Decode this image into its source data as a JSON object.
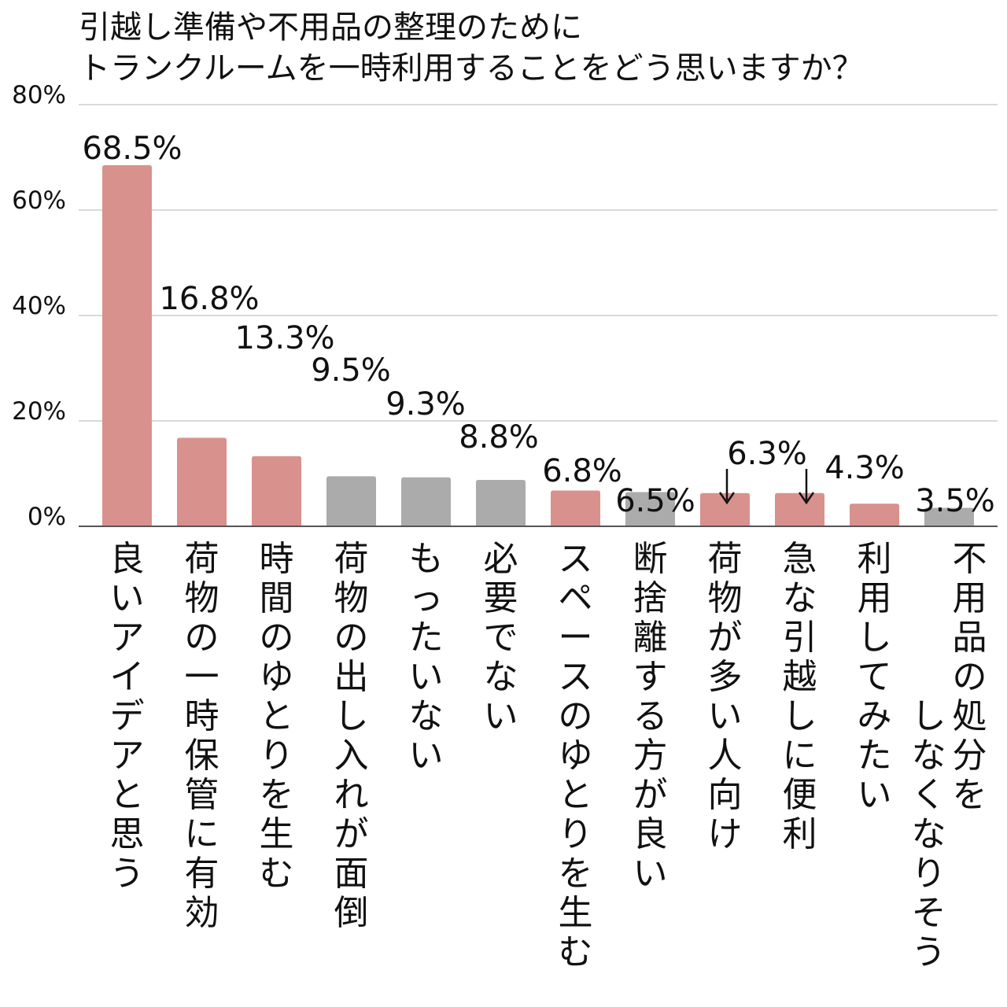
{
  "chart_data": {
    "type": "bar",
    "title": [
      "引越し準備や不用品の整理のために",
      "トランクルームを一時利用することをどう思いますか？"
    ],
    "xlabel": "",
    "ylabel": "",
    "ylim": [
      0,
      80
    ],
    "yticks": [
      "0%",
      "20%",
      "40%",
      "60%",
      "80%"
    ],
    "ytick_values": [
      0,
      20,
      40,
      60,
      80
    ],
    "grid": true,
    "categories": [
      [
        "良いアイデアと思う"
      ],
      [
        "荷物の一時保管に有効"
      ],
      [
        "時間のゆとりを生む"
      ],
      [
        "荷物の出し入れが面倒"
      ],
      [
        "もったいない"
      ],
      [
        "必要でない"
      ],
      [
        "スペースのゆとりを生む"
      ],
      [
        "断捨離する方が良い"
      ],
      [
        "荷物が多い人向け"
      ],
      [
        "急な引越しに便利"
      ],
      [
        "利用してみたい"
      ],
      [
        "不用品の処分を",
        "しなくなりそう"
      ]
    ],
    "values": [
      68.5,
      16.8,
      13.3,
      9.5,
      9.3,
      8.8,
      6.8,
      6.5,
      6.3,
      6.3,
      4.3,
      3.5
    ],
    "value_labels": [
      "68.5%",
      "16.8%",
      "13.3%",
      "9.5%",
      "9.3%",
      "8.8%",
      "6.8%",
      "6.5%",
      "6.3%",
      "6.3%",
      "4.3%",
      "3.5%"
    ],
    "bar_colors": [
      "#d9918d",
      "#d9918d",
      "#d9918d",
      "#ababab",
      "#ababab",
      "#ababab",
      "#d9918d",
      "#ababab",
      "#d9918d",
      "#d9918d",
      "#d9918d",
      "#ababab"
    ],
    "shared_label_note": "6.3% label shared by two bars, marked with arrows",
    "colors": {
      "positive": "#d9918d",
      "negative": "#ababab",
      "grid": "#d9d9d9",
      "axis": "#555555"
    }
  }
}
